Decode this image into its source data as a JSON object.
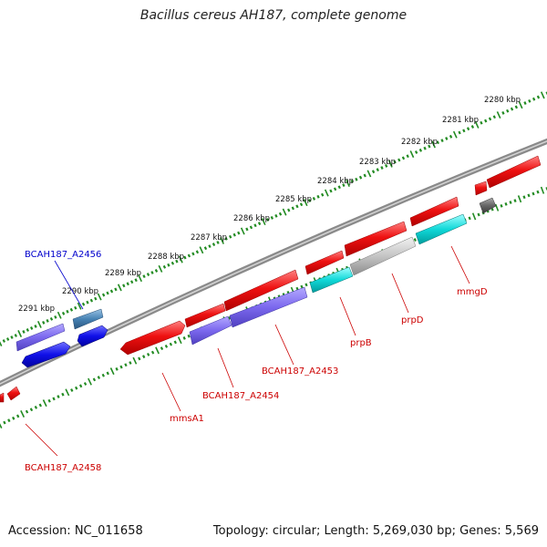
{
  "title": "Bacillus cereus AH187, complete genome",
  "footer": {
    "accession": "Accession: NC_011658",
    "summary": "Topology: circular; Length: 5,269,030 bp; Genes: 5,569"
  },
  "scale_labels": [
    "2280 kbp",
    "2281 kbp",
    "2282 kbp",
    "2283 kbp",
    "2284 kbp",
    "2285 kbp",
    "2286 kbp",
    "2287 kbp",
    "2288 kbp",
    "2289 kbp",
    "2290 kbp",
    "2291 kbp"
  ],
  "gene_labels": {
    "bcah187_a2456": "BCAH187_A2456",
    "bcah187_a2458": "BCAH187_A2458",
    "mmsa1": "mmsA1",
    "bcah187_a2454": "BCAH187_A2454",
    "bcah187_a2453": "BCAH187_A2453",
    "prpb": "prpB",
    "prpd": "prpD",
    "mmgd": "mmgD"
  },
  "colors": {
    "backbone": "#888888",
    "tick": "#228b22",
    "red": "#ee1111",
    "slate": "#7b68ee",
    "blue": "#1010e8",
    "steel": "#4682b4",
    "cyan": "#10d8d8",
    "silver": "#bdbdbd",
    "gray": "#666666",
    "label_red": "#cc0000",
    "label_blue": "#0000cc"
  }
}
